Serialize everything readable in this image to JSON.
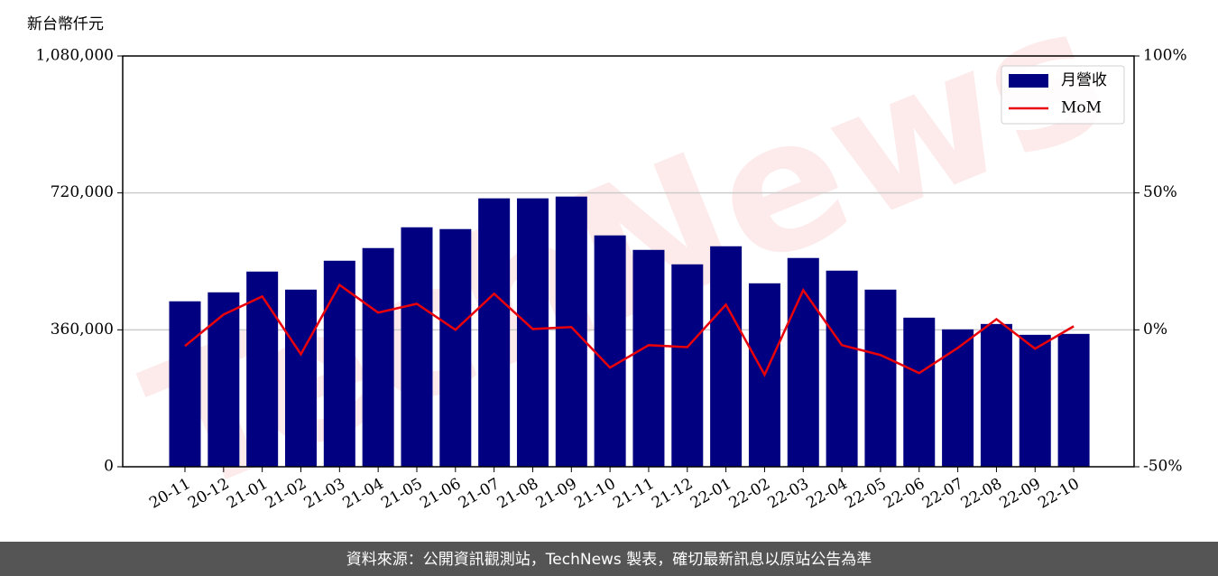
{
  "chart_data": {
    "type": "bar_line",
    "y_label": "新台幣仟元",
    "watermark": "TechNews",
    "footer": "資料來源：公開資訊觀測站，TechNews 製表，確切最新訊息以原站公告為準",
    "categories": [
      "20-11",
      "20-12",
      "21-01",
      "21-02",
      "21-03",
      "21-04",
      "21-05",
      "21-06",
      "21-07",
      "21-08",
      "21-09",
      "21-10",
      "21-11",
      "21-12",
      "22-01",
      "22-02",
      "22-03",
      "22-04",
      "22-05",
      "22-06",
      "22-07",
      "22-08",
      "22-09",
      "22-10"
    ],
    "series": [
      {
        "name": "月營收",
        "type": "bar",
        "color": "#000080",
        "values": [
          435000,
          458600,
          513200,
          465700,
          541700,
          575000,
          629600,
          624900,
          705700,
          705700,
          710400,
          608300,
          570200,
          532200,
          579700,
          482300,
          548900,
          515600,
          465700,
          392000,
          361200,
          375400,
          346900,
          349300
        ]
      },
      {
        "name": "MoM",
        "type": "line",
        "axis": "y2",
        "color": "#e8000b",
        "values": [
          -5.9,
          5.6,
          12.2,
          -8.9,
          16.4,
          6.3,
          9.5,
          0,
          13.2,
          0.3,
          1,
          -13.8,
          -5.6,
          -6.3,
          9.2,
          -16.4,
          14.5,
          -5.6,
          -9.2,
          -15.8,
          -6.6,
          3.9,
          -6.9,
          1.3
        ]
      }
    ],
    "ylim": [
      0,
      1080000
    ],
    "yticks": [
      {
        "value": 0,
        "label": "0"
      },
      {
        "value": 360000,
        "label": "360,000"
      },
      {
        "value": 720000,
        "label": "720,000"
      },
      {
        "value": 1080000,
        "label": "1,080,000"
      }
    ],
    "y2lim": [
      -50,
      100
    ],
    "y2ticks": [
      {
        "value": -50,
        "label": "-50%"
      },
      {
        "value": 0,
        "label": "0%"
      },
      {
        "value": 50,
        "label": "50%"
      },
      {
        "value": 100,
        "label": "100%"
      }
    ],
    "grid": true,
    "legend": "upper right"
  }
}
